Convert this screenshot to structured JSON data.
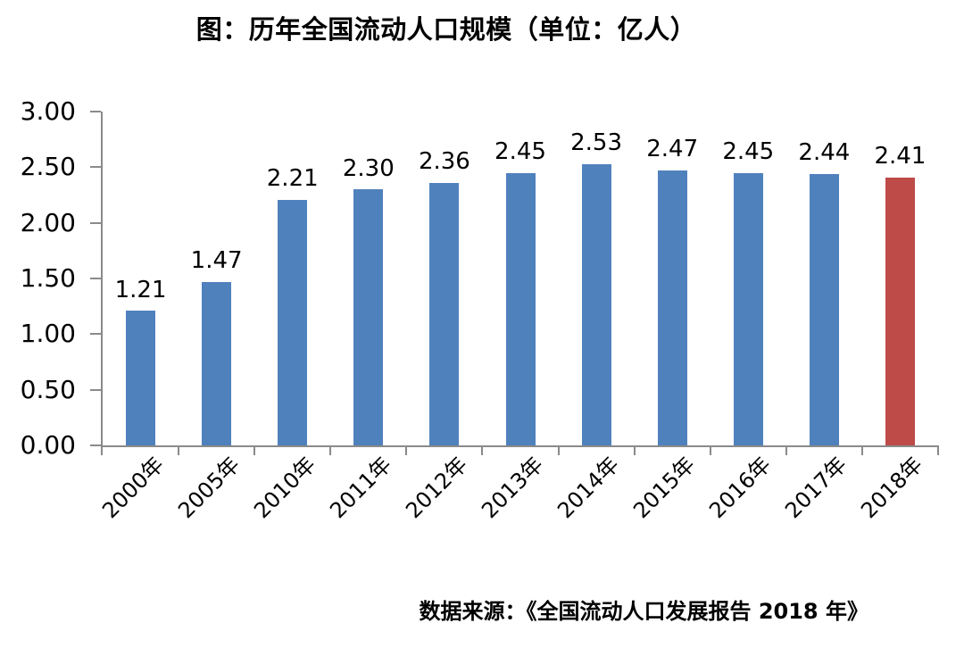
{
  "chart_data": {
    "type": "bar",
    "title": "图：历年全国流动人口规模（单位：亿人）",
    "categories": [
      "2000年",
      "2005年",
      "2010年",
      "2011年",
      "2012年",
      "2013年",
      "2014年",
      "2015年",
      "2016年",
      "2017年",
      "2018年"
    ],
    "values": [
      1.21,
      1.47,
      2.21,
      2.3,
      2.36,
      2.45,
      2.53,
      2.47,
      2.45,
      2.44,
      2.41
    ],
    "value_labels": [
      "1.21",
      "1.47",
      "2.21",
      "2.30",
      "2.36",
      "2.45",
      "2.53",
      "2.47",
      "2.45",
      "2.44",
      "2.41"
    ],
    "ylim": [
      0,
      3
    ],
    "ytick_step": 0.5,
    "ytick_labels": [
      "0.00",
      "0.50",
      "1.00",
      "1.50",
      "2.00",
      "2.50",
      "3.00"
    ],
    "xlabel": "",
    "ylabel": "",
    "grid": "off",
    "legend": "none",
    "bar_color_default": "#4F81BD",
    "bar_color_highlight": "#BE4B48",
    "highlight_index": 10,
    "axis_color": "#8a8a8a",
    "source_note": "数据来源：《全国流动人口发展报告 2018 年》"
  }
}
